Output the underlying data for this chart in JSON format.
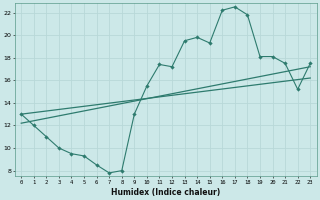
{
  "xlabel": "Humidex (Indice chaleur)",
  "bg_color": "#cce8e8",
  "grid_color": "#b8d8d8",
  "line_color": "#2e7b6e",
  "xlim": [
    -0.5,
    23.5
  ],
  "ylim": [
    7.5,
    22.8
  ],
  "yticks": [
    8,
    10,
    12,
    14,
    16,
    18,
    20,
    22
  ],
  "xticks": [
    0,
    1,
    2,
    3,
    4,
    5,
    6,
    7,
    8,
    9,
    10,
    11,
    12,
    13,
    14,
    15,
    16,
    17,
    18,
    19,
    20,
    21,
    22,
    23
  ],
  "zigzag_x": [
    0,
    1,
    2,
    3,
    4,
    5,
    6,
    7,
    8,
    9,
    10,
    11,
    12,
    13,
    14,
    15,
    16,
    17,
    18,
    19,
    20,
    21,
    22,
    23
  ],
  "zigzag_y": [
    13.0,
    12.0,
    11.0,
    10.0,
    9.5,
    9.3,
    8.5,
    7.8,
    8.0,
    13.0,
    15.5,
    17.4,
    17.2,
    19.5,
    19.8,
    19.3,
    22.2,
    22.5,
    21.8,
    18.1,
    18.1,
    17.5,
    15.2,
    17.5
  ],
  "trend1_x": [
    0,
    23
  ],
  "trend1_y": [
    12.2,
    17.2
  ],
  "trend2_x": [
    0,
    23
  ],
  "trend2_y": [
    13.0,
    16.2
  ]
}
